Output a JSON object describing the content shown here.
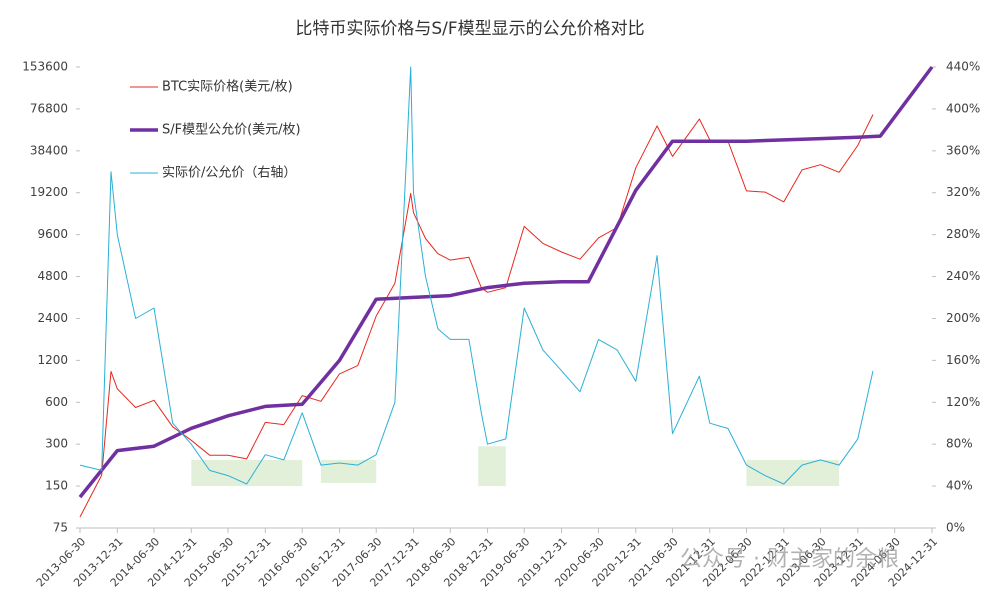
{
  "chart_data": {
    "type": "line",
    "title": "比特币实际价格与S/F模型显示的公允价格对比",
    "xlim": [
      "2013-06-30",
      "2024-12-31"
    ],
    "xticks": [
      "2013-06-30",
      "2013-12-31",
      "2014-06-30",
      "2014-12-31",
      "2015-06-30",
      "2015-12-31",
      "2016-06-30",
      "2016-12-31",
      "2017-06-30",
      "2017-12-31",
      "2018-06-30",
      "2018-12-31",
      "2019-06-30",
      "2019-12-31",
      "2020-06-30",
      "2020-12-31",
      "2021-06-30",
      "2021-12-31",
      "2022-06-30",
      "2022-12-31",
      "2023-06-30",
      "2023-12-31",
      "2024-06-30",
      "2024-12-31"
    ],
    "ylim": [
      75,
      153600
    ],
    "log_scale": true,
    "yticks": [
      75,
      150,
      300,
      600,
      1200,
      2400,
      4800,
      9600,
      19200,
      38400,
      76800,
      153600
    ],
    "y2lim": [
      0,
      440
    ],
    "y2ticks": [
      {
        "value": 0,
        "label": "0%"
      },
      {
        "value": 40,
        "label": "40%"
      },
      {
        "value": 80,
        "label": "80%"
      },
      {
        "value": 120,
        "label": "120%"
      },
      {
        "value": 160,
        "label": "160%"
      },
      {
        "value": 200,
        "label": "200%"
      },
      {
        "value": 240,
        "label": "240%"
      },
      {
        "value": 280,
        "label": "280%"
      },
      {
        "value": 320,
        "label": "320%"
      },
      {
        "value": 360,
        "label": "360%"
      },
      {
        "value": 400,
        "label": "400%"
      },
      {
        "value": 440,
        "label": "440%"
      }
    ],
    "legend": "upper left",
    "series": [
      {
        "name": "BTC实际价格(美元/枚)",
        "color": "#e8281e",
        "width": 1,
        "x": [
          "2013-06-30",
          "2013-10-15",
          "2013-11-30",
          "2013-12-31",
          "2014-03-31",
          "2014-06-30",
          "2014-09-30",
          "2014-12-31",
          "2015-03-31",
          "2015-06-30",
          "2015-09-30",
          "2015-12-31",
          "2016-03-31",
          "2016-06-30",
          "2016-09-30",
          "2016-12-31",
          "2017-03-31",
          "2017-06-30",
          "2017-09-30",
          "2017-12-17",
          "2017-12-31",
          "2018-02-28",
          "2018-04-30",
          "2018-06-30",
          "2018-09-30",
          "2018-11-30",
          "2018-12-31",
          "2019-03-31",
          "2019-06-30",
          "2019-09-30",
          "2019-12-31",
          "2020-03-31",
          "2020-06-30",
          "2020-09-30",
          "2020-12-31",
          "2021-04-15",
          "2021-06-30",
          "2021-11-10",
          "2021-12-31",
          "2022-03-31",
          "2022-06-30",
          "2022-09-30",
          "2022-12-31",
          "2023-03-31",
          "2023-06-30",
          "2023-09-30",
          "2023-12-31",
          "2024-03-15"
        ],
        "values": [
          90,
          180,
          1000,
          750,
          550,
          620,
          400,
          320,
          250,
          250,
          235,
          430,
          415,
          670,
          610,
          960,
          1100,
          2500,
          4300,
          19000,
          13800,
          9000,
          7000,
          6300,
          6600,
          4000,
          3700,
          4000,
          11000,
          8300,
          7200,
          6400,
          9100,
          10800,
          29000,
          58000,
          35000,
          65000,
          46000,
          45000,
          19800,
          19400,
          16500,
          28000,
          30500,
          26900,
          42000,
          70000
        ]
      },
      {
        "name": "S/F模型公允价(美元/枚)",
        "color": "#7030a0",
        "width": 3.5,
        "x": [
          "2013-06-30",
          "2013-12-31",
          "2014-06-30",
          "2014-12-31",
          "2015-06-30",
          "2015-12-31",
          "2016-06-30",
          "2016-12-31",
          "2017-06-30",
          "2017-12-31",
          "2018-06-30",
          "2018-12-31",
          "2019-06-30",
          "2019-12-31",
          "2020-05-11",
          "2020-12-31",
          "2021-06-30",
          "2021-12-31",
          "2022-06-30",
          "2022-12-31",
          "2023-06-30",
          "2023-12-31",
          "2024-04-20",
          "2024-12-31"
        ],
        "values": [
          125,
          270,
          290,
          390,
          480,
          560,
          580,
          1200,
          3300,
          3400,
          3500,
          4000,
          4300,
          4400,
          4400,
          20000,
          45000,
          45000,
          45000,
          46000,
          47000,
          48000,
          49000,
          153600
        ]
      },
      {
        "name": "实际价/公允价（右轴）",
        "color": "#2ab0d6",
        "width": 1,
        "axis": "y2",
        "x": [
          "2013-06-30",
          "2013-10-15",
          "2013-11-30",
          "2013-12-31",
          "2014-03-31",
          "2014-06-30",
          "2014-09-30",
          "2014-12-31",
          "2015-03-31",
          "2015-06-30",
          "2015-09-30",
          "2015-12-31",
          "2016-03-31",
          "2016-06-30",
          "2016-09-30",
          "2016-12-31",
          "2017-03-31",
          "2017-06-30",
          "2017-09-30",
          "2017-12-17",
          "2017-12-31",
          "2018-02-28",
          "2018-04-30",
          "2018-06-30",
          "2018-09-30",
          "2018-11-30",
          "2018-12-31",
          "2019-03-31",
          "2019-06-30",
          "2019-09-30",
          "2019-12-31",
          "2020-03-31",
          "2020-06-30",
          "2020-09-30",
          "2020-12-31",
          "2021-04-15",
          "2021-06-30",
          "2021-11-10",
          "2021-12-31",
          "2022-03-31",
          "2022-06-30",
          "2022-09-30",
          "2022-12-31",
          "2023-03-31",
          "2023-06-30",
          "2023-09-30",
          "2023-12-31",
          "2024-03-15"
        ],
        "values": [
          60,
          55,
          340,
          280,
          200,
          210,
          100,
          80,
          55,
          50,
          42,
          70,
          65,
          110,
          60,
          62,
          60,
          70,
          120,
          440,
          320,
          240,
          190,
          180,
          180,
          110,
          80,
          85,
          210,
          170,
          150,
          130,
          180,
          170,
          140,
          260,
          90,
          145,
          100,
          95,
          60,
          50,
          42,
          60,
          65,
          60,
          85,
          150
        ]
      }
    ],
    "highlights": [
      {
        "x": [
          "2014-12-31",
          "2016-06-30"
        ],
        "y2": [
          40,
          65
        ]
      },
      {
        "x": [
          "2016-09-30",
          "2017-06-30"
        ],
        "y2": [
          43,
          65
        ]
      },
      {
        "x": [
          "2018-11-15",
          "2019-03-31"
        ],
        "y2": [
          40,
          78
        ]
      },
      {
        "x": [
          "2022-06-30",
          "2023-09-30"
        ],
        "y2": [
          40,
          65
        ]
      }
    ],
    "highlight_color": "#e2f0d9",
    "watermark": "公众号 · 财主家的余粮"
  }
}
